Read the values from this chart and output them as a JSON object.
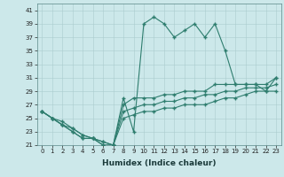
{
  "xlabel": "Humidex (Indice chaleur)",
  "ylabel": "",
  "x": [
    0,
    1,
    2,
    3,
    4,
    5,
    6,
    7,
    8,
    9,
    10,
    11,
    12,
    13,
    14,
    15,
    16,
    17,
    18,
    19,
    20,
    21,
    22,
    23
  ],
  "line1": [
    26,
    25,
    24,
    23,
    22,
    22,
    21,
    21,
    28,
    23,
    39,
    40,
    39,
    37,
    38,
    39,
    37,
    39,
    35,
    30,
    30,
    30,
    29,
    31
  ],
  "line2": [
    26,
    25,
    24.5,
    23.5,
    22.5,
    22,
    21.5,
    21,
    27,
    28,
    28,
    28,
    28.5,
    28.5,
    29,
    29,
    29,
    30,
    30,
    30,
    30,
    30,
    30,
    31
  ],
  "line3": [
    26,
    25,
    24,
    23.5,
    22.5,
    22,
    21.5,
    21,
    26,
    26.5,
    27,
    27,
    27.5,
    27.5,
    28,
    28,
    28.5,
    28.5,
    29,
    29,
    29.5,
    29.5,
    29.5,
    30
  ],
  "line4": [
    26,
    25,
    24,
    23,
    22,
    22,
    21,
    21,
    25,
    25.5,
    26,
    26,
    26.5,
    26.5,
    27,
    27,
    27,
    27.5,
    28,
    28,
    28.5,
    29,
    29,
    29
  ],
  "line_color": "#2e7d6e",
  "bg_color": "#cce8ea",
  "grid_color": "#aaccce",
  "ylim_min": 21,
  "ylim_max": 42,
  "yticks": [
    21,
    23,
    25,
    27,
    29,
    31,
    33,
    35,
    37,
    39,
    41
  ],
  "xticks": [
    0,
    1,
    2,
    3,
    4,
    5,
    6,
    7,
    8,
    9,
    10,
    11,
    12,
    13,
    14,
    15,
    16,
    17,
    18,
    19,
    20,
    21,
    22,
    23
  ],
  "marker": "+",
  "linewidth": 0.8,
  "markersize": 3.0,
  "tick_fontsize": 5.0,
  "xlabel_fontsize": 6.5
}
